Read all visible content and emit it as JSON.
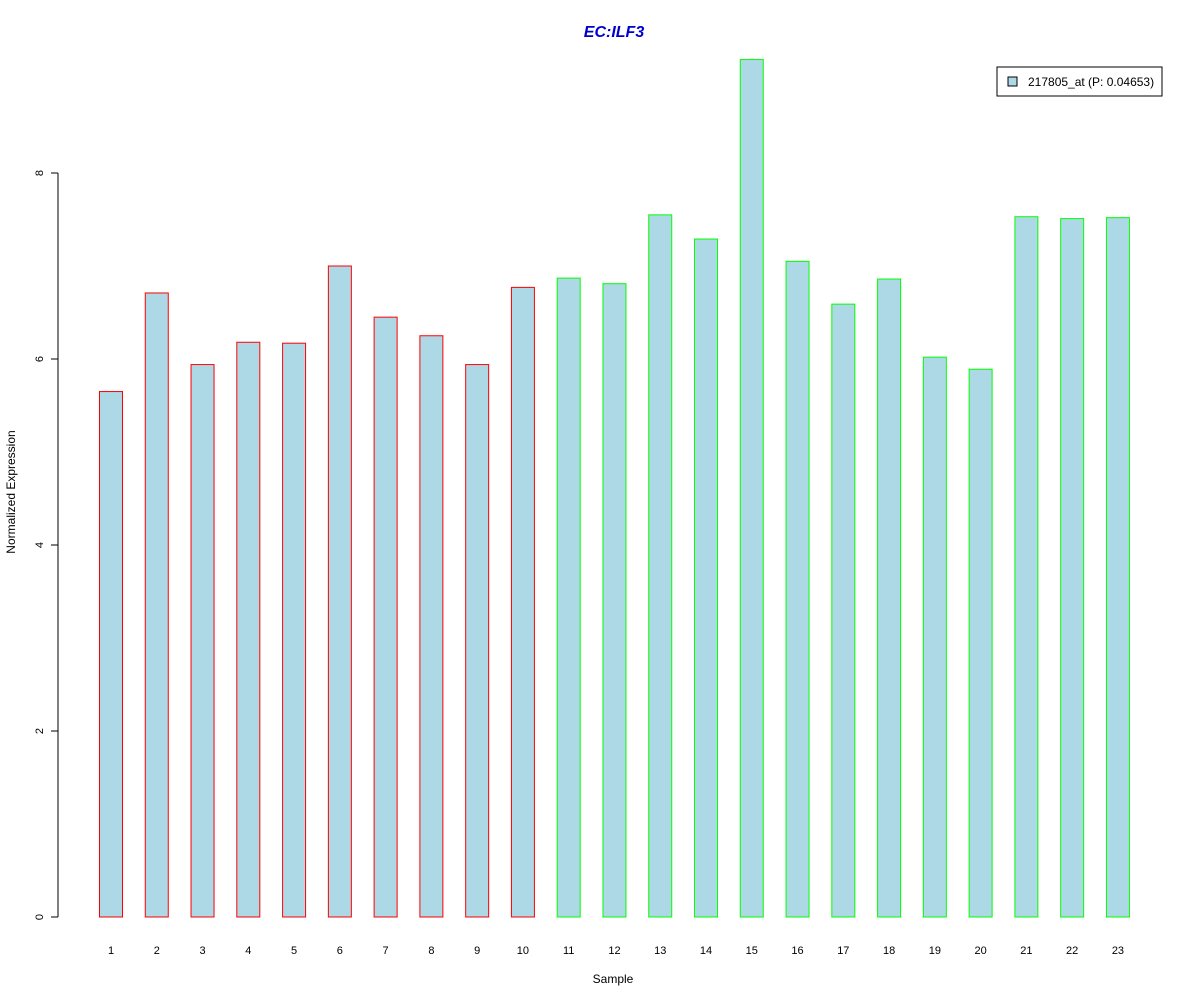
{
  "chart_data": {
    "type": "bar",
    "title": "EC:ILF3",
    "xlabel": "Sample",
    "ylabel": "Normalized Expression",
    "ylim": [
      0,
      9.3
    ],
    "yticks": [
      "0",
      "2",
      "4",
      "6",
      "8"
    ],
    "grid": false,
    "legend_position": "top-right",
    "legend": [
      {
        "label": "217805_at (P: 0.04653)",
        "fill": "#add8e6"
      }
    ],
    "categories": [
      "1",
      "2",
      "3",
      "4",
      "5",
      "6",
      "7",
      "8",
      "9",
      "10",
      "11",
      "12",
      "13",
      "14",
      "15",
      "16",
      "17",
      "18",
      "19",
      "20",
      "21",
      "22",
      "23"
    ],
    "series": [
      {
        "name": "217805_at (P: 0.04653)",
        "values": [
          5.65,
          6.71,
          5.94,
          6.18,
          6.17,
          7.0,
          6.45,
          6.25,
          5.94,
          6.77,
          6.87,
          6.81,
          7.55,
          7.29,
          9.22,
          7.05,
          6.59,
          6.86,
          6.02,
          5.89,
          7.53,
          7.51,
          7.52
        ]
      }
    ],
    "bar_fill": "#add8e6",
    "outline_colors": [
      "#ff0000",
      "#ff0000",
      "#ff0000",
      "#ff0000",
      "#ff0000",
      "#ff0000",
      "#ff0000",
      "#ff0000",
      "#ff0000",
      "#ff0000",
      "#00ff00",
      "#00ff00",
      "#00ff00",
      "#00ff00",
      "#00ff00",
      "#00ff00",
      "#00ff00",
      "#00ff00",
      "#00ff00",
      "#00ff00",
      "#00ff00",
      "#00ff00",
      "#00ff00"
    ],
    "title_color": "#0000cd"
  }
}
